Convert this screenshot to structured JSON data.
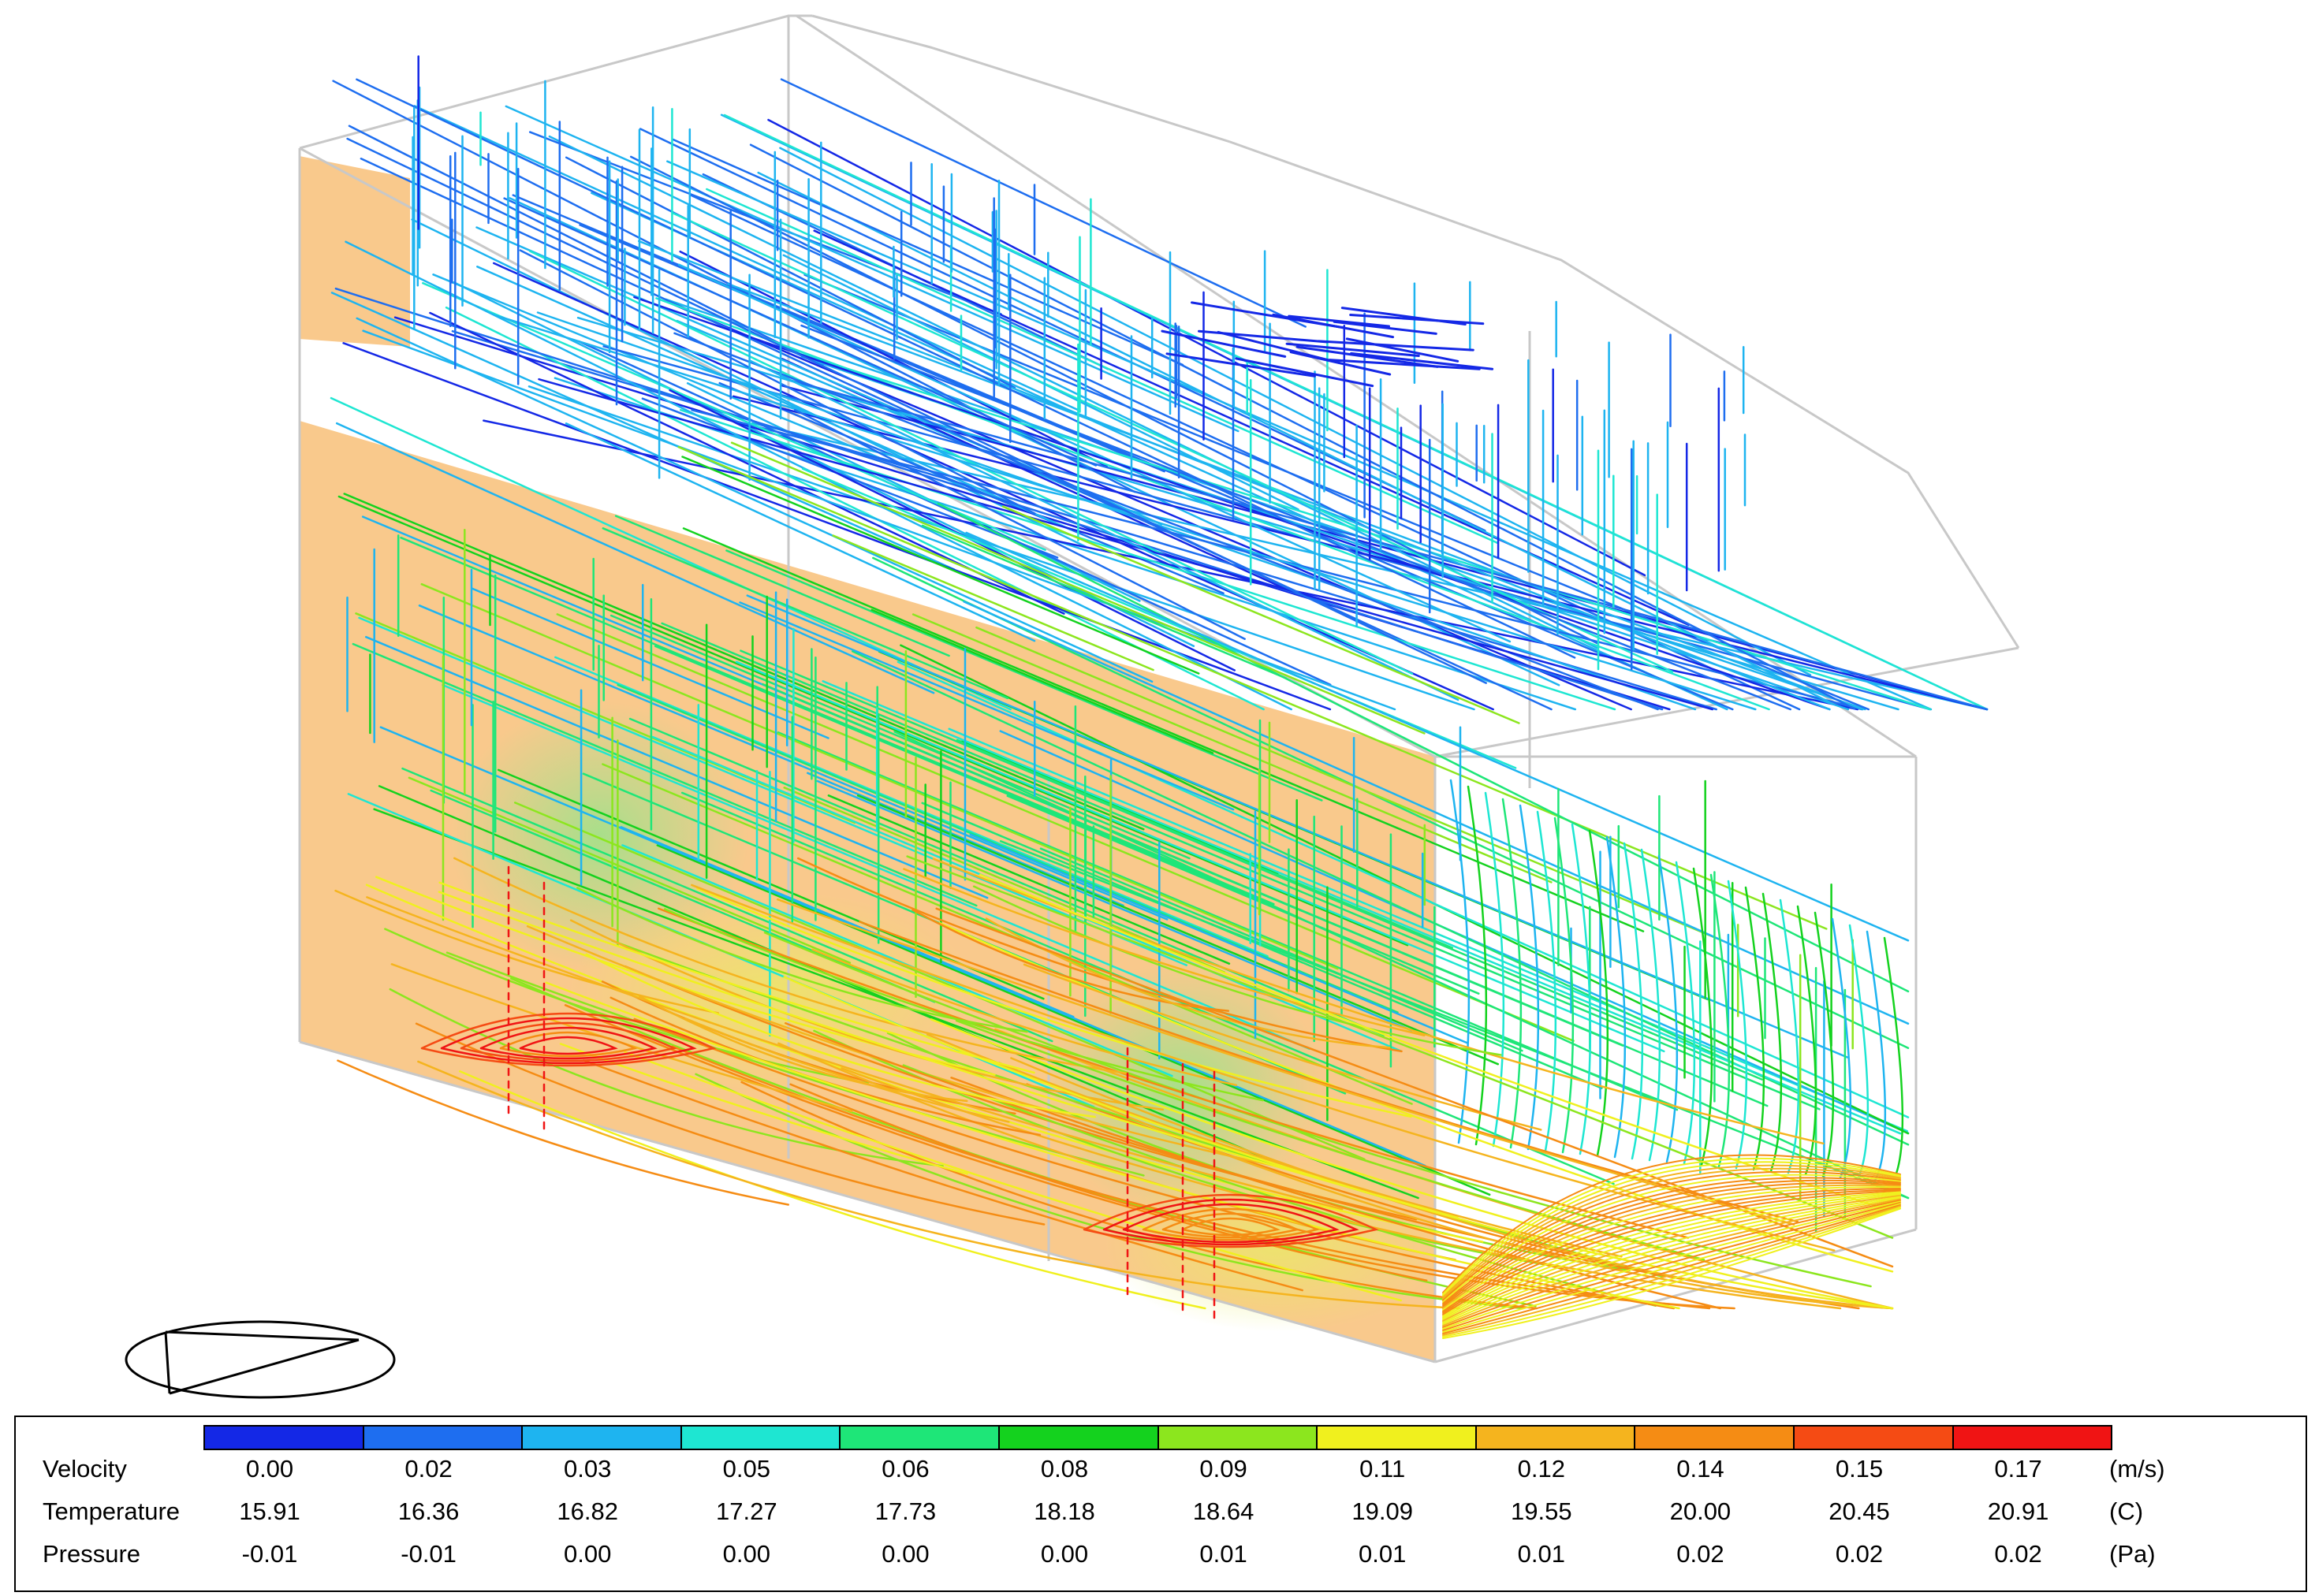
{
  "colors": {
    "background": "#ffffff",
    "wall_fill": "#f9c98c",
    "box_edges": "#c8c8c8",
    "scale": [
      "#1428e6",
      "#1e6ef0",
      "#1eb4f0",
      "#1ee6d2",
      "#1ee678",
      "#14d21e",
      "#8ce61e",
      "#f0f01e",
      "#f5b41e",
      "#f58c14",
      "#f54b14",
      "#f01414"
    ]
  },
  "compass": {
    "icon": "view-orientation-icon"
  },
  "legend": {
    "rows": [
      {
        "label": "Velocity",
        "unit": "(m/s)",
        "values": [
          "0.00",
          "0.02",
          "0.03",
          "0.05",
          "0.06",
          "0.08",
          "0.09",
          "0.11",
          "0.12",
          "0.14",
          "0.15",
          "0.17"
        ]
      },
      {
        "label": "Temperature",
        "unit": "(C)",
        "values": [
          "15.91",
          "16.36",
          "16.82",
          "17.27",
          "17.73",
          "18.18",
          "18.64",
          "19.09",
          "19.55",
          "20.00",
          "20.45",
          "20.91"
        ]
      },
      {
        "label": "Pressure",
        "unit": "(Pa)",
        "values": [
          "-0.01",
          "-0.01",
          "0.00",
          "0.00",
          "0.00",
          "0.00",
          "0.01",
          "0.01",
          "0.01",
          "0.02",
          "0.02",
          "0.02"
        ]
      }
    ]
  }
}
